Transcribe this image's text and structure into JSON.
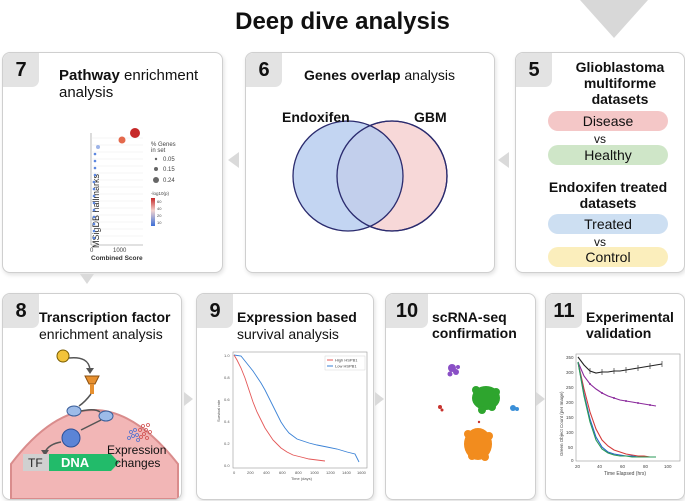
{
  "title": "Deep dive analysis",
  "colors": {
    "card_border": "#cfcfcf",
    "number_badge": "#e3e3e3",
    "arrow": "#dadada",
    "disease": "#f4c7c7",
    "healthy": "#cfe6c8",
    "treated": "#cddff2",
    "control": "#fbeebc",
    "venn_left": "#b9cef0",
    "venn_right": "#f7d8d8",
    "dna": "#22bb6a",
    "cell": "#f2b6b6"
  },
  "cards": {
    "c5": {
      "number": "5",
      "title": "Glioblastoma multiforme datasets",
      "disease": "Disease",
      "vs1": "vs",
      "healthy": "Healthy",
      "title2": "Endoxifen treated datasets",
      "treated": "Treated",
      "vs2": "vs",
      "control": "Control"
    },
    "c6": {
      "number": "6",
      "title_bold": "Genes overlap",
      "title_rest": " analysis",
      "set_a": "Endoxifen",
      "set_b": "GBM"
    },
    "c7": {
      "number": "7",
      "title_bold": "Pathway",
      "title_rest": " enrichment",
      "title_line2": "analysis",
      "ylabel": "MSigDB hallmarks",
      "xlabel": "Combined Score",
      "xtick0": "0",
      "xtick1": "1000",
      "legend_size_title": "% Genes",
      "legend_size_sub": "in set",
      "legend_s1": "0.05",
      "legend_s2": "0.15",
      "legend_s3": "0.24",
      "legend_color_title": "-log10(p)",
      "legend_c1": "60",
      "legend_c2": "40",
      "legend_c3": "20",
      "legend_c4": "10"
    },
    "c8": {
      "number": "8",
      "title_bold": "Transcription factor",
      "title_line2": "enrichment analysis",
      "tf": "TF",
      "dna": "DNA",
      "expression": "Expression",
      "changes": "changes"
    },
    "c9": {
      "number": "9",
      "title_bold": "Expression based",
      "title_line2": "survival analysis",
      "legend_high": "High HSPB1",
      "legend_low": "Low HSPB1",
      "xlabel": "Time (days)",
      "ylabel": "Survival rate",
      "xticks": [
        "0",
        "200",
        "400",
        "600",
        "800",
        "1000",
        "1200",
        "1400",
        "1600"
      ],
      "yticks": [
        "0.0",
        "0.2",
        "0.4",
        "0.6",
        "0.8",
        "1.0"
      ]
    },
    "c10": {
      "number": "10",
      "title": "scRNA-seq confirmation"
    },
    "c11": {
      "number": "11",
      "title": "Experimental validation",
      "xlabel": "Time Elapsed (hrs)",
      "ylabel": "Green Object Count (per Image)",
      "xticks": [
        "20",
        "40",
        "60",
        "80",
        "100"
      ],
      "yticks": [
        "0",
        "50",
        "100",
        "150",
        "200",
        "250",
        "300",
        "350"
      ]
    }
  }
}
